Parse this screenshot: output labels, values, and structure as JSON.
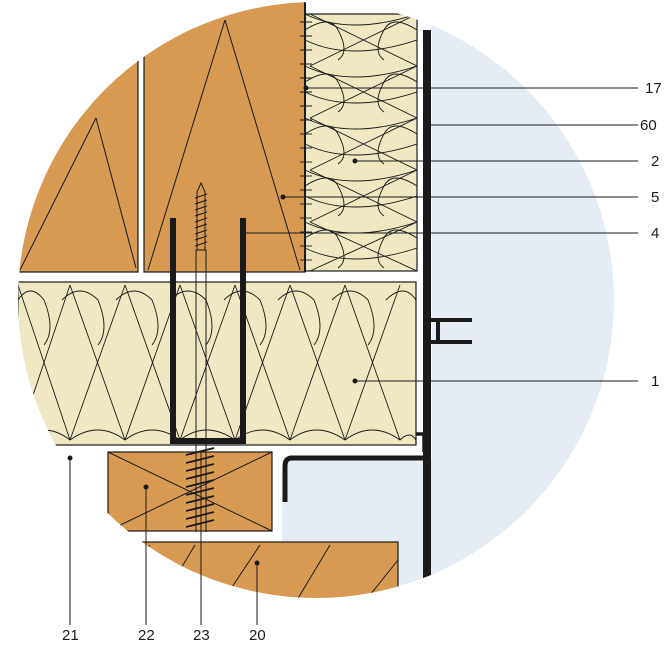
{
  "drawing": {
    "colors": {
      "wood": "#D89A52",
      "insulation": "#EFE8C3",
      "interior": "#E6ECF3",
      "line": "#1A1A1A"
    },
    "labels": {
      "l17": "17",
      "l60": "60",
      "l2": "2",
      "l5": "5",
      "l4": "4",
      "l1": "1",
      "l21": "21",
      "l22": "22",
      "l23": "23",
      "l20": "20"
    }
  }
}
